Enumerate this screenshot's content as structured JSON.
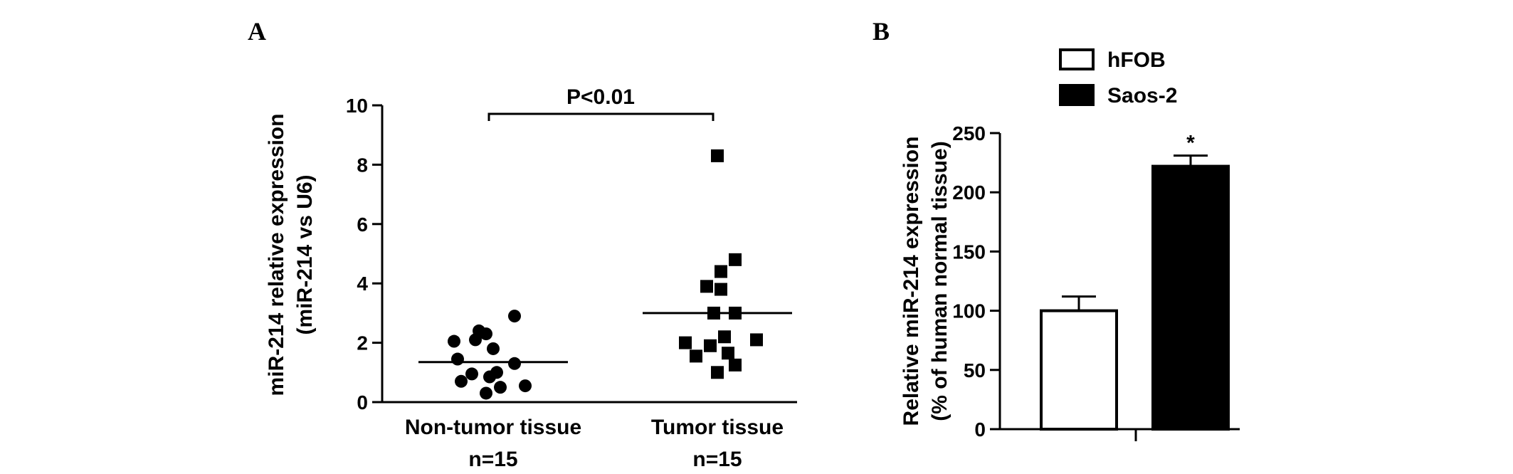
{
  "chart_data": [
    {
      "panel": "A",
      "type": "scatter",
      "ylabel_line1": "miR-214 relative expression",
      "ylabel_line2": "(miR-214 vs U6)",
      "ylim": [
        0,
        10
      ],
      "yticks": [
        "0",
        "2",
        "4",
        "6",
        "8",
        "10"
      ],
      "annotation": "P<0.01",
      "categories": [
        {
          "label": "Non-tumor tissue",
          "n": "n=15",
          "marker": "circle",
          "mean": 1.35,
          "points": [
            [
              -0.45,
              0.7
            ],
            [
              -0.5,
              1.45
            ],
            [
              0.0,
              1.8
            ],
            [
              -0.55,
              2.05
            ],
            [
              0.3,
              2.9
            ],
            [
              -0.2,
              2.4
            ],
            [
              -0.25,
              2.1
            ],
            [
              -0.1,
              2.3
            ],
            [
              0.05,
              1.0
            ],
            [
              -0.3,
              0.95
            ],
            [
              0.45,
              0.55
            ],
            [
              -0.1,
              0.3
            ],
            [
              0.1,
              0.5
            ],
            [
              0.3,
              1.3
            ],
            [
              -0.05,
              0.85
            ]
          ]
        },
        {
          "label": "Tumor tissue",
          "n": "n=15",
          "marker": "square",
          "mean": 3.0,
          "points": [
            [
              0.0,
              8.3
            ],
            [
              0.25,
              4.8
            ],
            [
              0.05,
              4.4
            ],
            [
              -0.15,
              3.9
            ],
            [
              0.05,
              3.8
            ],
            [
              -0.05,
              3.0
            ],
            [
              0.25,
              3.0
            ],
            [
              -0.45,
              2.0
            ],
            [
              0.55,
              2.1
            ],
            [
              -0.1,
              1.9
            ],
            [
              0.15,
              1.65
            ],
            [
              -0.3,
              1.55
            ],
            [
              0.25,
              1.25
            ],
            [
              0.0,
              1.0
            ],
            [
              0.1,
              2.2
            ]
          ]
        }
      ]
    },
    {
      "panel": "B",
      "type": "bar",
      "ylabel_line1": "Relative miR-214 expression",
      "ylabel_line2": "(% of human normal tissue)",
      "ylim": [
        0,
        250
      ],
      "yticks": [
        "0",
        "50",
        "100",
        "150",
        "200",
        "250"
      ],
      "series": [
        {
          "name": "hFOB",
          "value": 100,
          "error": 12,
          "fill": "#ffffff",
          "annotation": ""
        },
        {
          "name": "Saos-2",
          "value": 222,
          "error": 9,
          "fill": "#000000",
          "annotation": "*"
        }
      ]
    }
  ]
}
